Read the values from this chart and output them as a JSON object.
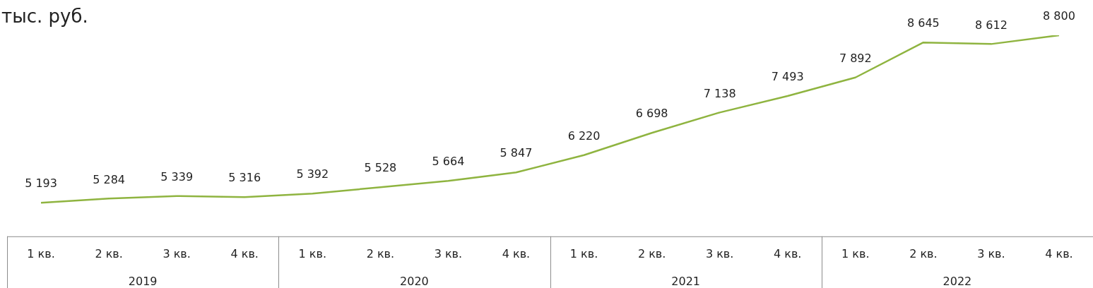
{
  "chart_data": {
    "type": "line",
    "ylabel": "тыс. руб.",
    "categories": [
      "1 кв.",
      "2 кв.",
      "3 кв.",
      "4 кв.",
      "1 кв.",
      "2 кв.",
      "3 кв.",
      "4 кв.",
      "1 кв.",
      "2 кв.",
      "3 кв.",
      "4 кв.",
      "1 кв.",
      "2 кв.",
      "3 кв.",
      "4 кв."
    ],
    "series": [
      {
        "color": "#8fb440",
        "values": [
          5193,
          5284,
          5339,
          5316,
          5392,
          5528,
          5664,
          5847,
          6220,
          6698,
          7138,
          7493,
          7892,
          8645,
          8612,
          8800
        ],
        "value_labels": [
          "5 193",
          "5 284",
          "5 339",
          "5 316",
          "5 392",
          "5 528",
          "5 664",
          "5 847",
          "6 220",
          "6 698",
          "7 138",
          "7 493",
          "7 892",
          "8 645",
          "8 612",
          "8 800"
        ]
      }
    ],
    "annotations": [
      "2019",
      "2020",
      "2021",
      "2022"
    ],
    "marker": "none",
    "grid": false,
    "legend": false
  }
}
